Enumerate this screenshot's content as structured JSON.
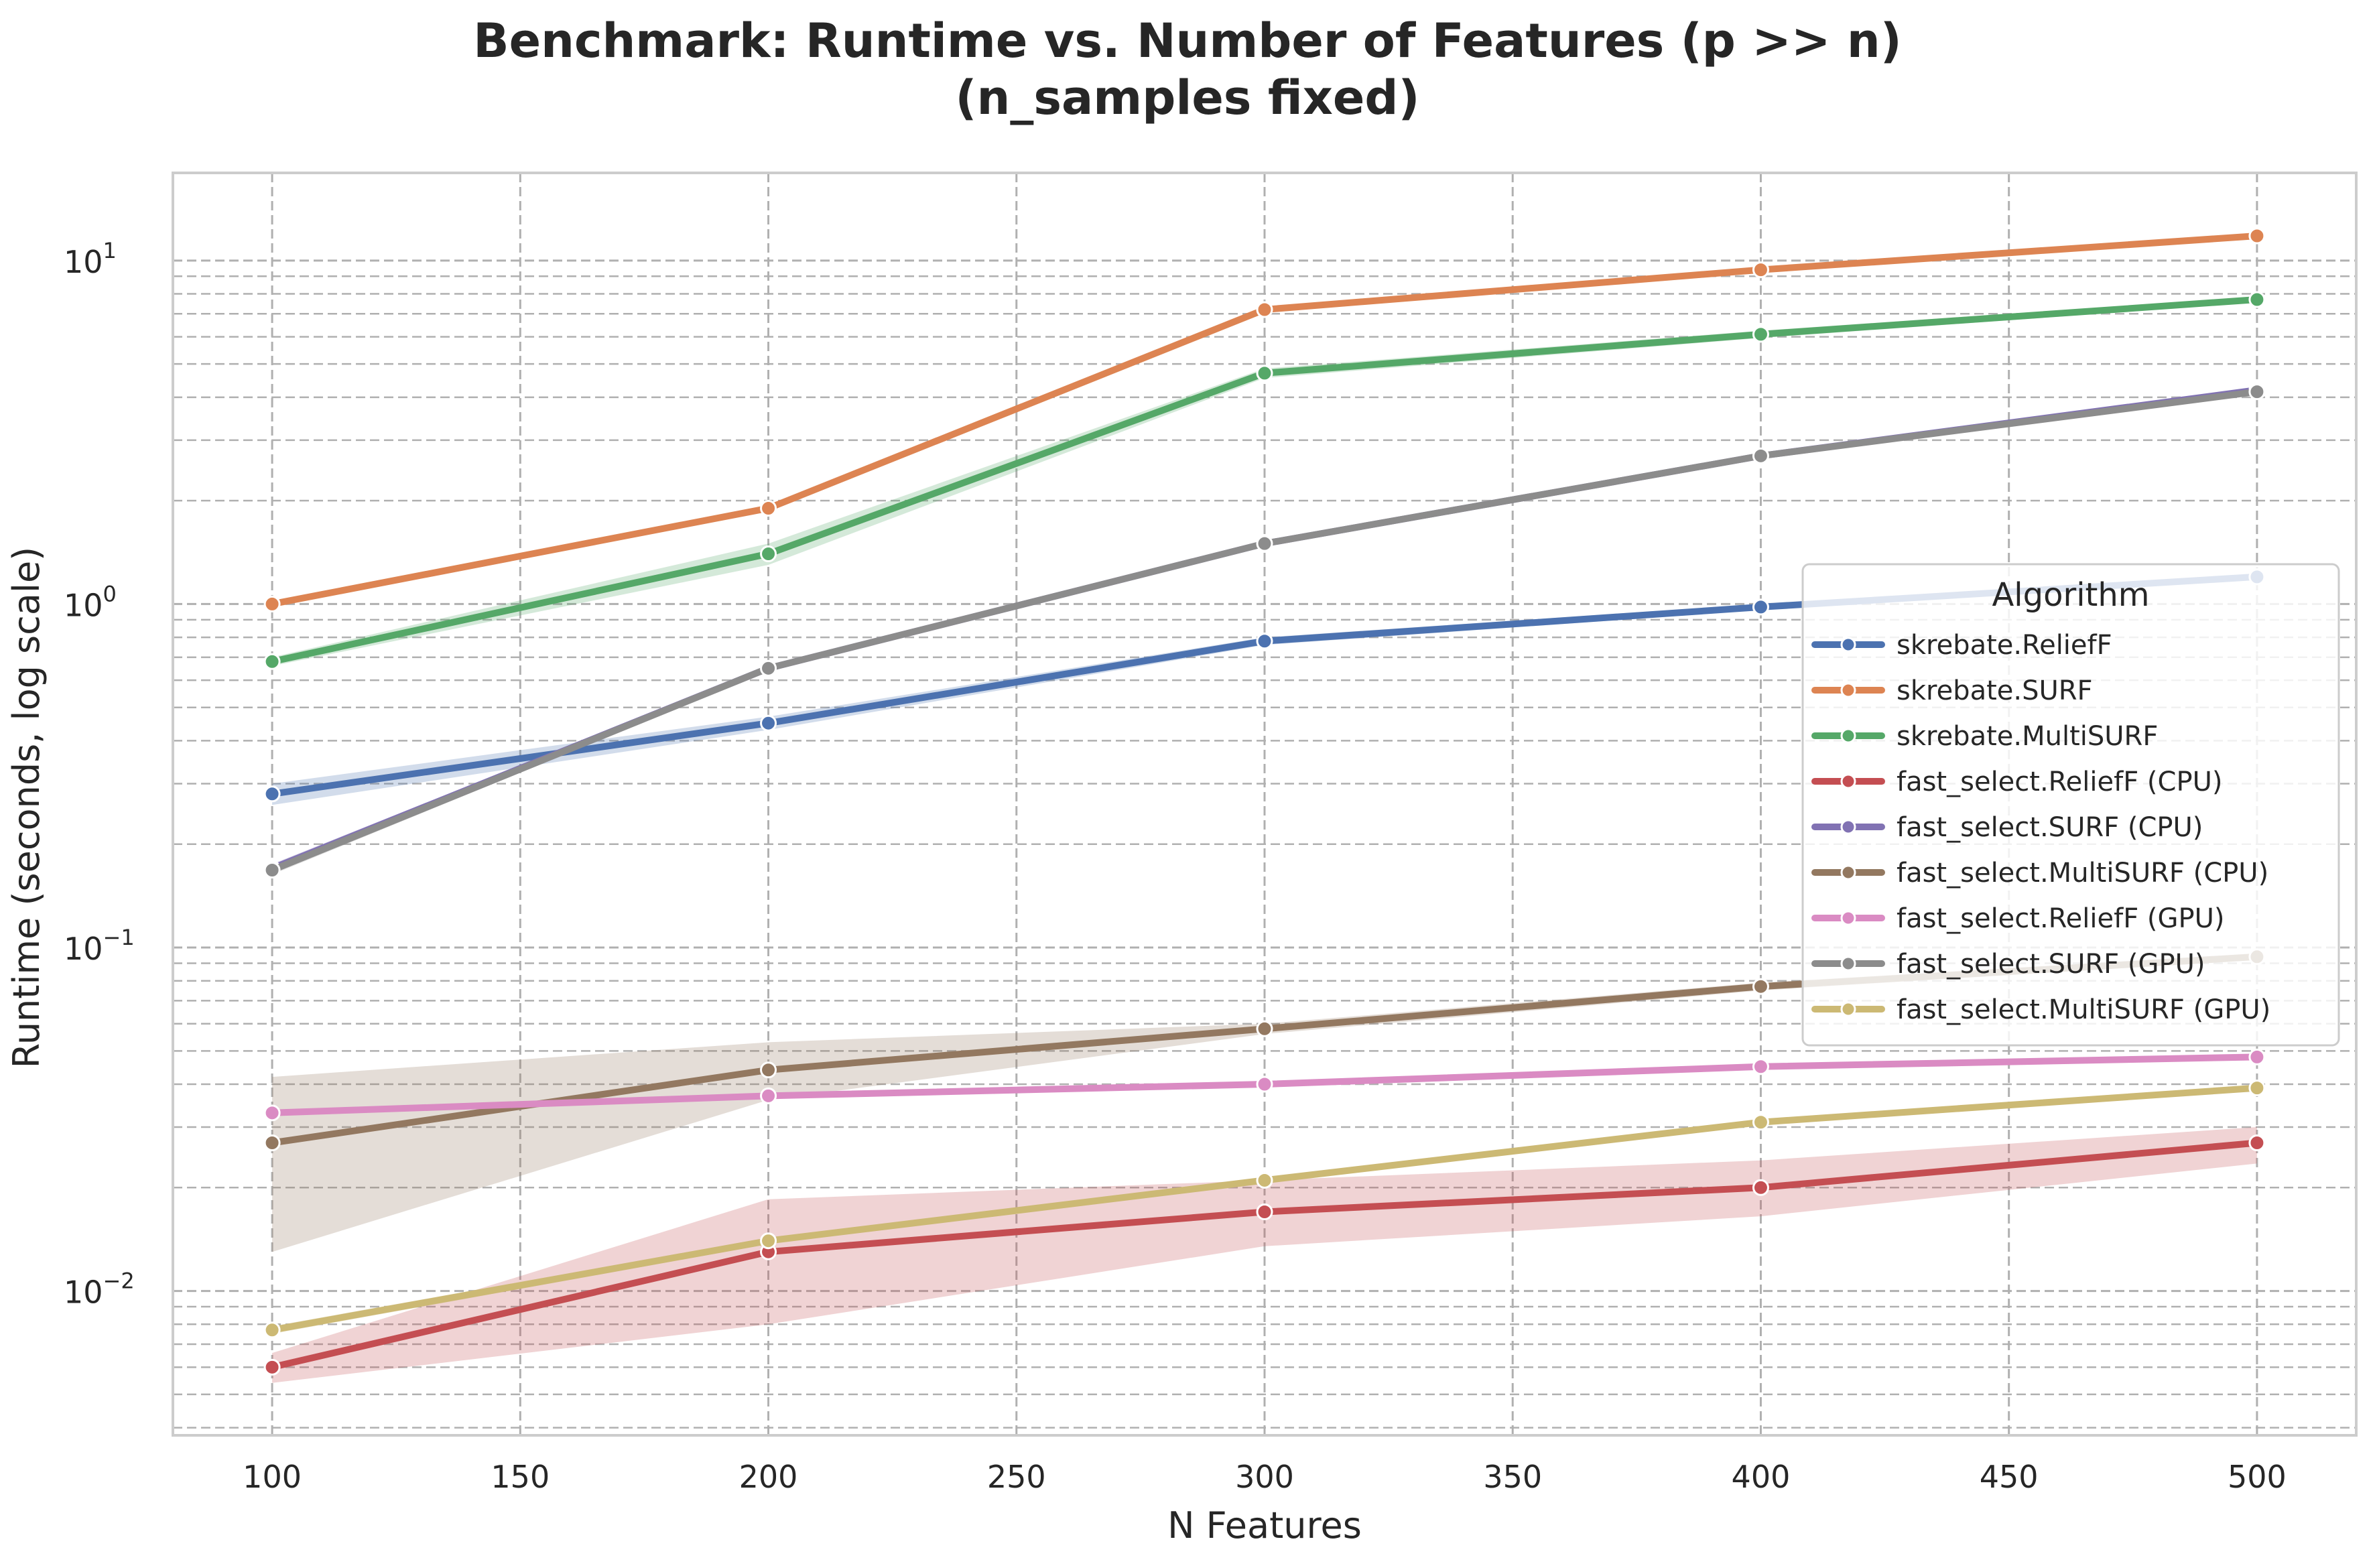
{
  "chart_data": {
    "type": "line",
    "title_line1": "Benchmark: Runtime vs. Number of Features (p >> n)",
    "title_line2": "(n_samples fixed)",
    "xlabel": "N Features",
    "ylabel": "Runtime (seconds, log scale)",
    "yscale": "log",
    "xlim": [
      80,
      520
    ],
    "ylim": [
      0.0038,
      18
    ],
    "x_ticks": [
      100,
      150,
      200,
      250,
      300,
      350,
      400,
      450,
      500
    ],
    "y_ticks": [
      {
        "value": 0.01,
        "base": "10",
        "exp": "−2"
      },
      {
        "value": 0.1,
        "base": "10",
        "exp": "−1"
      },
      {
        "value": 1,
        "base": "10",
        "exp": "0"
      },
      {
        "value": 10,
        "base": "10",
        "exp": "1"
      }
    ],
    "grid": true,
    "legend_title": "Algorithm",
    "legend_position": "center-right",
    "x": [
      100,
      200,
      300,
      400,
      500
    ],
    "series": [
      {
        "name": "skrebate.ReliefF",
        "color": "#4c72b0",
        "values": [
          0.28,
          0.45,
          0.78,
          0.98,
          1.2
        ],
        "ci_low": [
          0.26,
          0.43,
          0.76,
          0.96,
          1.18
        ],
        "ci_high": [
          0.3,
          0.47,
          0.8,
          1.0,
          1.22
        ]
      },
      {
        "name": "skrebate.SURF",
        "color": "#dd8452",
        "values": [
          1.0,
          1.9,
          7.2,
          9.4,
          11.8
        ],
        "ci_low": [
          0.98,
          1.86,
          7.05,
          9.2,
          11.6
        ],
        "ci_high": [
          1.02,
          1.94,
          7.35,
          9.6,
          12.0
        ]
      },
      {
        "name": "skrebate.MultiSURF",
        "color": "#55a868",
        "values": [
          0.68,
          1.4,
          4.7,
          6.1,
          7.7
        ],
        "ci_low": [
          0.66,
          1.3,
          4.55,
          5.95,
          7.55
        ],
        "ci_high": [
          0.7,
          1.5,
          4.85,
          6.25,
          7.85
        ]
      },
      {
        "name": "fast_select.ReliefF (CPU)",
        "color": "#c44e52",
        "values": [
          0.006,
          0.013,
          0.017,
          0.02,
          0.027
        ],
        "ci_low": [
          0.0054,
          0.008,
          0.0135,
          0.0165,
          0.0235
        ],
        "ci_high": [
          0.0066,
          0.0185,
          0.021,
          0.024,
          0.03
        ]
      },
      {
        "name": "fast_select.SURF (CPU)",
        "color": "#8172b3",
        "values": [
          0.17,
          0.65,
          1.5,
          2.7,
          4.2
        ],
        "ci_low": [
          0.165,
          0.64,
          1.48,
          2.68,
          4.15
        ],
        "ci_high": [
          0.175,
          0.66,
          1.52,
          2.72,
          4.25
        ]
      },
      {
        "name": "fast_select.MultiSURF (CPU)",
        "color": "#937860",
        "values": [
          0.027,
          0.044,
          0.058,
          0.077,
          0.094
        ],
        "ci_low": [
          0.013,
          0.036,
          0.056,
          0.075,
          0.092
        ],
        "ci_high": [
          0.042,
          0.053,
          0.06,
          0.079,
          0.096
        ]
      },
      {
        "name": "fast_select.ReliefF (GPU)",
        "color": "#da8bc3",
        "values": [
          0.033,
          0.037,
          0.04,
          0.045,
          0.048
        ],
        "ci_low": [
          0.0325,
          0.0365,
          0.0395,
          0.0443,
          0.0474
        ],
        "ci_high": [
          0.0335,
          0.0375,
          0.0405,
          0.0457,
          0.0486
        ]
      },
      {
        "name": "fast_select.SURF (GPU)",
        "color": "#8c8c8c",
        "values": [
          0.168,
          0.65,
          1.5,
          2.7,
          4.15
        ],
        "ci_low": [
          0.163,
          0.64,
          1.48,
          2.68,
          4.1
        ],
        "ci_high": [
          0.173,
          0.66,
          1.52,
          2.72,
          4.2
        ]
      },
      {
        "name": "fast_select.MultiSURF (GPU)",
        "color": "#ccb974",
        "values": [
          0.0077,
          0.014,
          0.021,
          0.031,
          0.039
        ],
        "ci_low": [
          0.0075,
          0.0137,
          0.0206,
          0.0305,
          0.0384
        ],
        "ci_high": [
          0.0079,
          0.0143,
          0.0214,
          0.0315,
          0.0396
        ]
      }
    ]
  }
}
